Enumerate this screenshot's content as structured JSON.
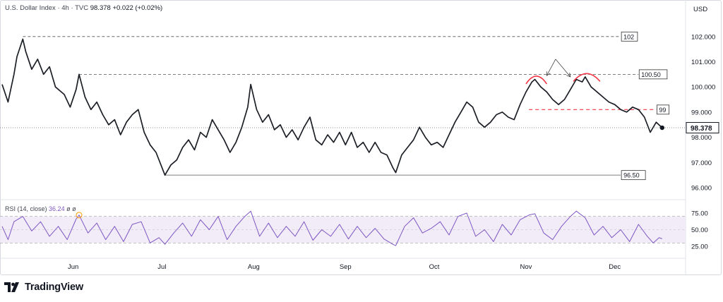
{
  "header": {
    "symbol_title": "U.S. Dollar Index · 4h · TVC",
    "last_price": "98.378",
    "change": "+0.022 (+0.02%)"
  },
  "axis": {
    "currency": "USD"
  },
  "rsi": {
    "label": "RSI (14, close)",
    "value": "36.24",
    "extra1": "ø",
    "extra2": "ø"
  },
  "brand": {
    "name": "TradingView"
  },
  "colors": {
    "price_line": "#1c1f26",
    "rsi_line": "#7e57c2",
    "rsi_band": "#ede7f6",
    "highlight_red": "#f23645",
    "last_price_dot": "#131722"
  },
  "chart_data": [
    {
      "type": "line",
      "name": "price",
      "x_range": [
        "2025-05-08",
        "2025-12-18"
      ],
      "ylim": [
        95.6,
        103
      ],
      "y_ticks": [
        102.0,
        101.0,
        100.0,
        99.0,
        98.0,
        97.0,
        96.0
      ],
      "y_tick_labels": [
        "102.000",
        "101.000",
        "100.000",
        "99.000",
        "98.000",
        "97.000",
        "96.000"
      ],
      "x_tick_labels": [
        "Jun",
        "Jul",
        "Aug",
        "Sep",
        "Oct",
        "Nov",
        "Dec"
      ],
      "x_ticks": [
        "2025-06-01",
        "2025-07-01",
        "2025-08-01",
        "2025-09-01",
        "2025-10-01",
        "2025-11-01",
        "2025-12-01"
      ],
      "last_price_label": "98.378",
      "points": [
        [
          "2025-05-08",
          100.1
        ],
        [
          "2025-05-10",
          99.4
        ],
        [
          "2025-05-12",
          100.5
        ],
        [
          "2025-05-13",
          101.2
        ],
        [
          "2025-05-15",
          101.9
        ],
        [
          "2025-05-16",
          101.4
        ],
        [
          "2025-05-18",
          100.7
        ],
        [
          "2025-05-20",
          101.1
        ],
        [
          "2025-05-22",
          100.5
        ],
        [
          "2025-05-24",
          100.8
        ],
        [
          "2025-05-26",
          100.0
        ],
        [
          "2025-05-29",
          99.7
        ],
        [
          "2025-05-31",
          99.2
        ],
        [
          "2025-06-02",
          99.9
        ],
        [
          "2025-06-03",
          100.5
        ],
        [
          "2025-06-05",
          99.6
        ],
        [
          "2025-06-07",
          99.1
        ],
        [
          "2025-06-09",
          99.4
        ],
        [
          "2025-06-11",
          98.9
        ],
        [
          "2025-06-13",
          98.5
        ],
        [
          "2025-06-15",
          98.7
        ],
        [
          "2025-06-17",
          98.1
        ],
        [
          "2025-06-19",
          98.6
        ],
        [
          "2025-06-21",
          98.9
        ],
        [
          "2025-06-23",
          99.1
        ],
        [
          "2025-06-25",
          98.2
        ],
        [
          "2025-06-27",
          97.7
        ],
        [
          "2025-06-29",
          97.4
        ],
        [
          "2025-07-01",
          96.8
        ],
        [
          "2025-07-02",
          96.5
        ],
        [
          "2025-07-04",
          96.9
        ],
        [
          "2025-07-06",
          97.1
        ],
        [
          "2025-07-08",
          97.6
        ],
        [
          "2025-07-10",
          97.9
        ],
        [
          "2025-07-12",
          97.5
        ],
        [
          "2025-07-14",
          98.2
        ],
        [
          "2025-07-16",
          98.0
        ],
        [
          "2025-07-18",
          98.7
        ],
        [
          "2025-07-20",
          98.3
        ],
        [
          "2025-07-22",
          97.9
        ],
        [
          "2025-07-24",
          97.4
        ],
        [
          "2025-07-26",
          97.8
        ],
        [
          "2025-07-28",
          98.4
        ],
        [
          "2025-07-30",
          99.2
        ],
        [
          "2025-07-31",
          100.1
        ],
        [
          "2025-08-02",
          99.1
        ],
        [
          "2025-08-04",
          98.6
        ],
        [
          "2025-08-06",
          98.9
        ],
        [
          "2025-08-08",
          98.3
        ],
        [
          "2025-08-10",
          98.5
        ],
        [
          "2025-08-12",
          98.0
        ],
        [
          "2025-08-14",
          98.3
        ],
        [
          "2025-08-16",
          97.9
        ],
        [
          "2025-08-18",
          98.4
        ],
        [
          "2025-08-20",
          98.8
        ],
        [
          "2025-08-22",
          97.9
        ],
        [
          "2025-08-24",
          97.7
        ],
        [
          "2025-08-26",
          98.1
        ],
        [
          "2025-08-28",
          97.8
        ],
        [
          "2025-08-30",
          98.2
        ],
        [
          "2025-09-01",
          97.7
        ],
        [
          "2025-09-03",
          98.2
        ],
        [
          "2025-09-05",
          97.6
        ],
        [
          "2025-09-07",
          97.8
        ],
        [
          "2025-09-09",
          97.4
        ],
        [
          "2025-09-11",
          97.8
        ],
        [
          "2025-09-13",
          97.4
        ],
        [
          "2025-09-15",
          97.3
        ],
        [
          "2025-09-17",
          96.8
        ],
        [
          "2025-09-18",
          96.6
        ],
        [
          "2025-09-20",
          97.3
        ],
        [
          "2025-09-22",
          97.6
        ],
        [
          "2025-09-24",
          97.9
        ],
        [
          "2025-09-26",
          98.4
        ],
        [
          "2025-09-28",
          98.0
        ],
        [
          "2025-09-30",
          97.7
        ],
        [
          "2025-10-02",
          97.8
        ],
        [
          "2025-10-04",
          97.6
        ],
        [
          "2025-10-06",
          98.1
        ],
        [
          "2025-10-08",
          98.6
        ],
        [
          "2025-10-10",
          99.0
        ],
        [
          "2025-10-12",
          99.4
        ],
        [
          "2025-10-14",
          99.2
        ],
        [
          "2025-10-16",
          98.6
        ],
        [
          "2025-10-18",
          98.4
        ],
        [
          "2025-10-20",
          98.6
        ],
        [
          "2025-10-22",
          98.9
        ],
        [
          "2025-10-24",
          99.0
        ],
        [
          "2025-10-26",
          98.8
        ],
        [
          "2025-10-28",
          98.7
        ],
        [
          "2025-10-30",
          99.3
        ],
        [
          "2025-11-01",
          99.8
        ],
        [
          "2025-11-03",
          100.2
        ],
        [
          "2025-11-04",
          100.3
        ],
        [
          "2025-11-06",
          100.0
        ],
        [
          "2025-11-08",
          99.8
        ],
        [
          "2025-11-10",
          99.5
        ],
        [
          "2025-11-12",
          99.3
        ],
        [
          "2025-11-14",
          99.5
        ],
        [
          "2025-11-16",
          99.9
        ],
        [
          "2025-11-18",
          100.3
        ],
        [
          "2025-11-20",
          100.2
        ],
        [
          "2025-11-21",
          100.4
        ],
        [
          "2025-11-23",
          100.0
        ],
        [
          "2025-11-25",
          99.8
        ],
        [
          "2025-11-27",
          99.6
        ],
        [
          "2025-11-29",
          99.4
        ],
        [
          "2025-12-01",
          99.3
        ],
        [
          "2025-12-03",
          99.1
        ],
        [
          "2025-12-05",
          99.0
        ],
        [
          "2025-12-07",
          99.2
        ],
        [
          "2025-12-09",
          99.1
        ],
        [
          "2025-12-11",
          98.8
        ],
        [
          "2025-12-13",
          98.2
        ],
        [
          "2025-12-15",
          98.6
        ],
        [
          "2025-12-17",
          98.38
        ]
      ],
      "annotations": [
        {
          "kind": "hline",
          "value": 102,
          "label": "102",
          "from": "2025-05-15",
          "to": "2025-12-03",
          "style": "dashed"
        },
        {
          "kind": "hline",
          "value": 100.5,
          "label": "100.50",
          "from": "2025-06-03",
          "to": "2025-12-09",
          "style": "dashed"
        },
        {
          "kind": "hline",
          "value": 96.5,
          "label": "96.50",
          "from": "2025-07-02",
          "to": "2025-12-03",
          "style": "solid"
        },
        {
          "kind": "hline",
          "value": 99.1,
          "label": "99",
          "from": "2025-11-02",
          "to": "2025-12-15",
          "style": "dashed-red"
        },
        {
          "kind": "arc",
          "from": "2025-11-01",
          "to": "2025-11-08",
          "level": 100.4
        },
        {
          "kind": "arc",
          "from": "2025-11-17",
          "to": "2025-11-26",
          "level": 100.5
        },
        {
          "kind": "arrow",
          "tail": [
            "2025-11-11",
            101.1
          ],
          "head": [
            "2025-11-08",
            100.45
          ]
        },
        {
          "kind": "arrow",
          "tail": [
            "2025-11-11",
            101.1
          ],
          "head": [
            "2025-11-16",
            100.4
          ]
        }
      ]
    },
    {
      "type": "line",
      "name": "RSI (14, close)",
      "ylim": [
        20,
        80
      ],
      "y_ticks": [
        75,
        50,
        25
      ],
      "y_tick_labels": [
        "75.00",
        "50.00",
        "25.00"
      ],
      "band": [
        30,
        70
      ],
      "midline": 50,
      "points": [
        [
          "2025-05-08",
          55
        ],
        [
          "2025-05-10",
          35
        ],
        [
          "2025-05-12",
          62
        ],
        [
          "2025-05-15",
          70
        ],
        [
          "2025-05-18",
          48
        ],
        [
          "2025-05-21",
          62
        ],
        [
          "2025-05-24",
          40
        ],
        [
          "2025-05-27",
          55
        ],
        [
          "2025-05-30",
          35
        ],
        [
          "2025-06-02",
          66
        ],
        [
          "2025-06-03",
          72
        ],
        [
          "2025-06-06",
          45
        ],
        [
          "2025-06-09",
          60
        ],
        [
          "2025-06-12",
          35
        ],
        [
          "2025-06-15",
          55
        ],
        [
          "2025-06-18",
          32
        ],
        [
          "2025-06-21",
          58
        ],
        [
          "2025-06-24",
          62
        ],
        [
          "2025-06-27",
          30
        ],
        [
          "2025-06-30",
          38
        ],
        [
          "2025-07-02",
          28
        ],
        [
          "2025-07-05",
          45
        ],
        [
          "2025-07-08",
          60
        ],
        [
          "2025-07-11",
          40
        ],
        [
          "2025-07-14",
          65
        ],
        [
          "2025-07-17",
          50
        ],
        [
          "2025-07-20",
          70
        ],
        [
          "2025-07-23",
          35
        ],
        [
          "2025-07-26",
          55
        ],
        [
          "2025-07-29",
          70
        ],
        [
          "2025-07-31",
          78
        ],
        [
          "2025-08-03",
          40
        ],
        [
          "2025-08-06",
          60
        ],
        [
          "2025-08-09",
          38
        ],
        [
          "2025-08-12",
          55
        ],
        [
          "2025-08-15",
          40
        ],
        [
          "2025-08-18",
          62
        ],
        [
          "2025-08-21",
          34
        ],
        [
          "2025-08-24",
          50
        ],
        [
          "2025-08-27",
          40
        ],
        [
          "2025-08-30",
          58
        ],
        [
          "2025-09-02",
          36
        ],
        [
          "2025-09-05",
          55
        ],
        [
          "2025-09-08",
          38
        ],
        [
          "2025-09-11",
          52
        ],
        [
          "2025-09-14",
          36
        ],
        [
          "2025-09-17",
          28
        ],
        [
          "2025-09-18",
          26
        ],
        [
          "2025-09-21",
          55
        ],
        [
          "2025-09-24",
          68
        ],
        [
          "2025-09-27",
          45
        ],
        [
          "2025-09-30",
          52
        ],
        [
          "2025-10-03",
          62
        ],
        [
          "2025-10-06",
          42
        ],
        [
          "2025-10-09",
          70
        ],
        [
          "2025-10-12",
          75
        ],
        [
          "2025-10-15",
          40
        ],
        [
          "2025-10-18",
          50
        ],
        [
          "2025-10-21",
          32
        ],
        [
          "2025-10-24",
          58
        ],
        [
          "2025-10-27",
          42
        ],
        [
          "2025-10-30",
          65
        ],
        [
          "2025-11-02",
          72
        ],
        [
          "2025-11-04",
          74
        ],
        [
          "2025-11-07",
          45
        ],
        [
          "2025-11-10",
          35
        ],
        [
          "2025-11-13",
          55
        ],
        [
          "2025-11-16",
          70
        ],
        [
          "2025-11-18",
          78
        ],
        [
          "2025-11-21",
          68
        ],
        [
          "2025-11-24",
          42
        ],
        [
          "2025-11-27",
          55
        ],
        [
          "2025-11-30",
          38
        ],
        [
          "2025-12-03",
          50
        ],
        [
          "2025-12-06",
          32
        ],
        [
          "2025-12-09",
          58
        ],
        [
          "2025-12-12",
          40
        ],
        [
          "2025-12-14",
          30
        ],
        [
          "2025-12-16",
          38
        ],
        [
          "2025-12-17",
          36.24
        ]
      ],
      "overbought_marker": {
        "date": "2025-06-03",
        "value": 72
      }
    }
  ]
}
